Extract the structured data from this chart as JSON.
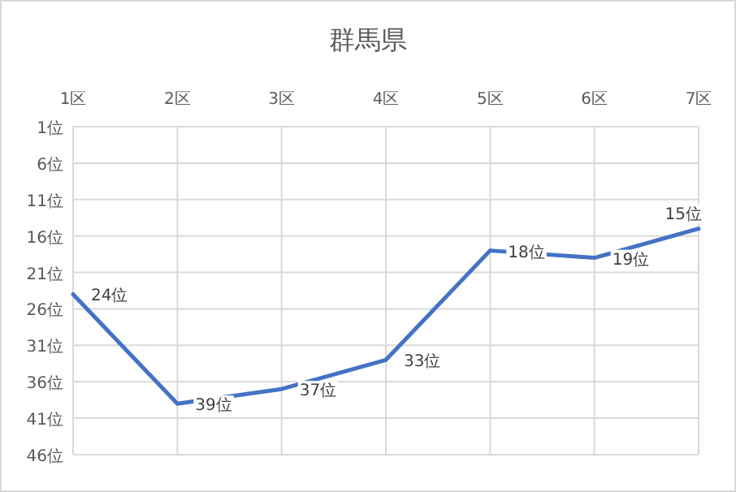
{
  "chart_data": {
    "type": "line",
    "title": "群馬県",
    "categories": [
      "1区",
      "2区",
      "3区",
      "4区",
      "5区",
      "6区",
      "7区"
    ],
    "series": [
      {
        "color": "#4472c4",
        "values": [
          24,
          39,
          37,
          33,
          18,
          19,
          15
        ],
        "value_labels": [
          "24位",
          "39位",
          "37位",
          "33位",
          "18位",
          "19位",
          "15位"
        ]
      }
    ],
    "ylim": [
      46,
      1
    ],
    "yticks": [
      {
        "value": 1,
        "label": "1位"
      },
      {
        "value": 6,
        "label": "6位"
      },
      {
        "value": 11,
        "label": "11位"
      },
      {
        "value": 16,
        "label": "16位"
      },
      {
        "value": 21,
        "label": "21位"
      },
      {
        "value": 26,
        "label": "26位"
      },
      {
        "value": 31,
        "label": "31位"
      },
      {
        "value": 36,
        "label": "36位"
      },
      {
        "value": 41,
        "label": "41位"
      },
      {
        "value": 46,
        "label": "46位"
      }
    ],
    "grid": true,
    "marker": "none",
    "line_style": "solid"
  }
}
